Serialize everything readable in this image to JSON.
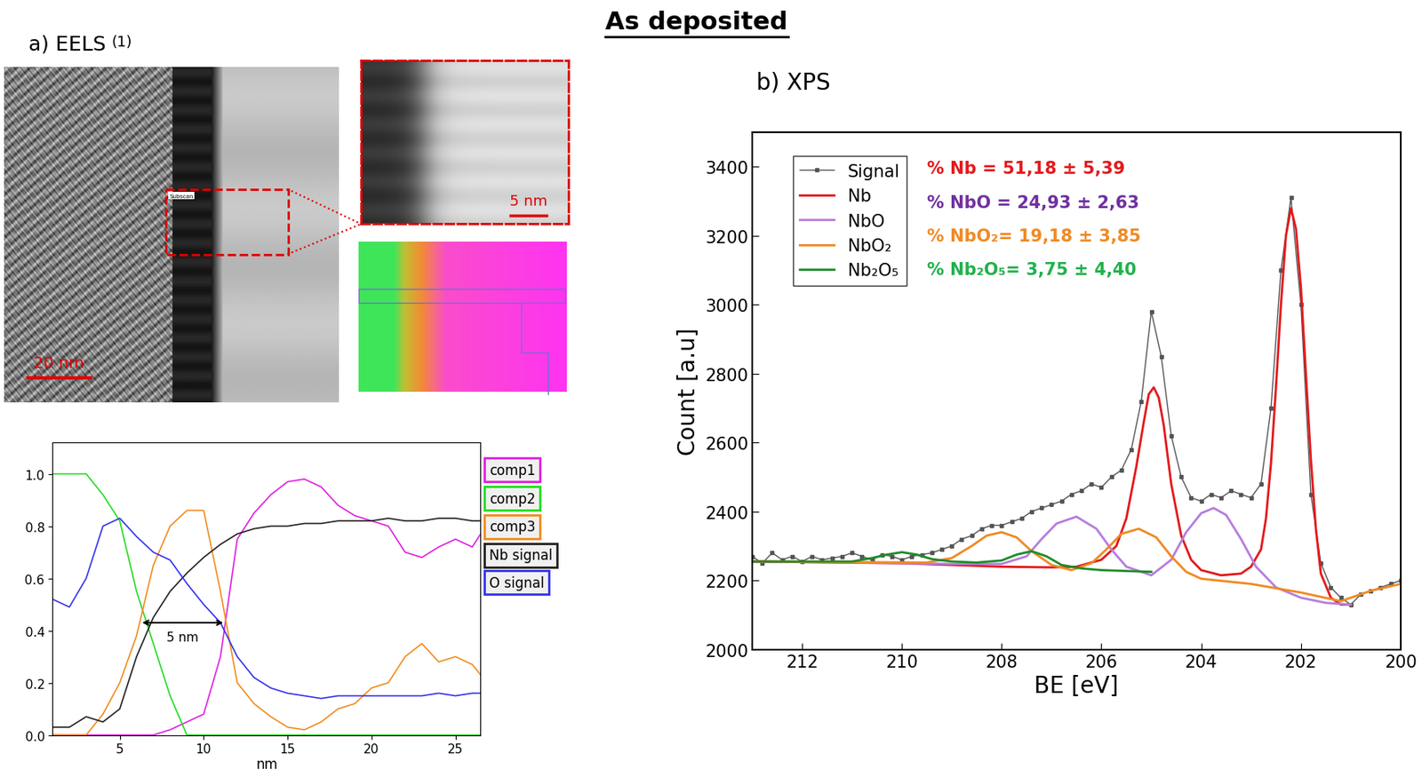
{
  "title": "As deposited",
  "panels": {
    "a": {
      "label": "a) EELS",
      "reference": "(1)",
      "image_scale_bar": "20 nm",
      "subscan_label": "Subscan",
      "zoom_scale_bar": "5 nm"
    },
    "b": {
      "label": "b) XPS"
    }
  },
  "chart_data": [
    {
      "type": "line",
      "xlabel": "nm",
      "x": [
        1,
        2,
        3,
        4,
        5,
        6,
        7,
        8,
        9,
        10,
        11,
        12,
        13,
        14,
        15,
        16,
        17,
        18,
        19,
        20,
        21,
        22,
        23,
        24,
        25,
        26,
        26.5
      ],
      "xlim": [
        1,
        26.5
      ],
      "xticks": [
        5,
        10,
        15,
        20,
        25
      ],
      "ylim": [
        0,
        1.12
      ],
      "yticks": [
        {
          "value": 0,
          "label": "0.0"
        },
        0.2,
        0.4,
        0.6,
        0.8,
        {
          "value": 1,
          "label": "1.0"
        }
      ],
      "legend": "right",
      "series": [
        {
          "name": "comp1",
          "color": "#e020e0",
          "values": [
            0,
            0,
            0,
            0,
            0,
            0,
            0,
            0.02,
            0.05,
            0.08,
            0.3,
            0.75,
            0.85,
            0.92,
            0.97,
            0.98,
            0.95,
            0.88,
            0.84,
            0.82,
            0.8,
            0.7,
            0.68,
            0.72,
            0.75,
            0.72,
            0.77
          ]
        },
        {
          "name": "comp2",
          "color": "#22dd22",
          "values": [
            1,
            1,
            1,
            0.92,
            0.82,
            0.55,
            0.35,
            0.15,
            0,
            0,
            0,
            0,
            0,
            0,
            0,
            0,
            0,
            0,
            0,
            0,
            0,
            0,
            0,
            0,
            0,
            0,
            0
          ]
        },
        {
          "name": "comp3",
          "color": "#f28c1e",
          "values": [
            0,
            0,
            0,
            0.08,
            0.2,
            0.38,
            0.65,
            0.8,
            0.86,
            0.86,
            0.55,
            0.2,
            0.12,
            0.07,
            0.03,
            0.02,
            0.05,
            0.1,
            0.12,
            0.18,
            0.2,
            0.3,
            0.35,
            0.28,
            0.3,
            0.27,
            0.23
          ]
        },
        {
          "name": "Nb signal",
          "color": "#222222",
          "values": [
            0.03,
            0.03,
            0.07,
            0.05,
            0.1,
            0.3,
            0.45,
            0.55,
            0.62,
            0.68,
            0.73,
            0.77,
            0.79,
            0.8,
            0.8,
            0.81,
            0.81,
            0.82,
            0.82,
            0.82,
            0.83,
            0.82,
            0.82,
            0.83,
            0.83,
            0.82,
            0.82
          ]
        },
        {
          "name": "O signal",
          "color": "#3333ee",
          "values": [
            0.52,
            0.49,
            0.6,
            0.8,
            0.83,
            0.76,
            0.7,
            0.67,
            0.58,
            0.5,
            0.43,
            0.3,
            0.22,
            0.18,
            0.16,
            0.15,
            0.14,
            0.15,
            0.15,
            0.15,
            0.15,
            0.15,
            0.15,
            0.16,
            0.15,
            0.16,
            0.16
          ]
        }
      ],
      "annotations": [
        {
          "text": "5 nm",
          "x_from": 6.2,
          "x_to": 11.3,
          "y": 0.43
        }
      ]
    },
    {
      "type": "line",
      "xlabel": "BE [eV]",
      "ylabel": "Count [a.u]",
      "xlim": [
        213,
        200
      ],
      "xticks": [
        212,
        210,
        208,
        206,
        204,
        202,
        200
      ],
      "ylim": [
        2000,
        3500
      ],
      "yticks": [
        2000,
        2200,
        2400,
        2600,
        2800,
        3000,
        3200,
        3400
      ],
      "legend": "upper left",
      "series": [
        {
          "name": "Signal",
          "color": "#555555",
          "marker": "square",
          "line_style": "solid",
          "x": [
            213,
            212.8,
            212.6,
            212.4,
            212.2,
            212,
            211.8,
            211.6,
            211.4,
            211.2,
            211,
            210.8,
            210.6,
            210.4,
            210.2,
            210,
            209.8,
            209.6,
            209.4,
            209.2,
            209,
            208.8,
            208.6,
            208.4,
            208.2,
            208,
            207.8,
            207.6,
            207.4,
            207.2,
            207,
            206.8,
            206.6,
            206.4,
            206.2,
            206,
            205.8,
            205.6,
            205.4,
            205.2,
            205,
            204.8,
            204.6,
            204.4,
            204.2,
            204,
            203.8,
            203.6,
            203.4,
            203.2,
            203,
            202.8,
            202.6,
            202.4,
            202.2,
            202,
            201.8,
            201.6,
            201.4,
            201.2,
            201,
            200.8,
            200.6,
            200.4,
            200.2,
            200
          ],
          "values": [
            2270,
            2250,
            2280,
            2260,
            2270,
            2255,
            2270,
            2260,
            2265,
            2270,
            2280,
            2270,
            2260,
            2275,
            2270,
            2260,
            2270,
            2275,
            2280,
            2290,
            2300,
            2320,
            2330,
            2350,
            2360,
            2360,
            2370,
            2380,
            2400,
            2410,
            2420,
            2430,
            2450,
            2460,
            2480,
            2470,
            2500,
            2520,
            2580,
            2720,
            2980,
            2850,
            2620,
            2500,
            2440,
            2430,
            2450,
            2440,
            2460,
            2450,
            2440,
            2480,
            2700,
            3100,
            3310,
            3000,
            2450,
            2250,
            2180,
            2150,
            2130,
            2160,
            2170,
            2180,
            2190,
            2200
          ]
        },
        {
          "name": "Nb",
          "color": "#e31a1c",
          "marker": "none",
          "line_style": "solid",
          "x": [
            213,
            210,
            208,
            207,
            206.5,
            206,
            205.7,
            205.5,
            205.3,
            205.15,
            205.05,
            204.95,
            204.85,
            204.75,
            204.6,
            204.4,
            204.2,
            204,
            203.6,
            203.2,
            203,
            202.8,
            202.7,
            202.6,
            202.5,
            202.4,
            202.3,
            202.2,
            202.1,
            202,
            201.9,
            201.8,
            201.7,
            201.6,
            201.4,
            201.2,
            201
          ],
          "values": [
            2255,
            2250,
            2240,
            2238,
            2240,
            2260,
            2300,
            2380,
            2530,
            2660,
            2740,
            2760,
            2730,
            2650,
            2480,
            2330,
            2260,
            2230,
            2215,
            2220,
            2240,
            2290,
            2380,
            2540,
            2760,
            3000,
            3200,
            3280,
            3220,
            3050,
            2800,
            2550,
            2350,
            2220,
            2150,
            2130,
            2130
          ]
        },
        {
          "name": "NbO",
          "color": "#b57edc",
          "marker": "none",
          "line_style": "solid",
          "x": [
            213,
            209,
            208,
            207.5,
            207.2,
            206.9,
            206.5,
            206.1,
            205.8,
            205.5,
            205,
            204.6,
            204.3,
            204,
            203.75,
            203.5,
            203.2,
            202.9,
            202.5,
            202,
            201.5,
            201
          ],
          "values": [
            2255,
            2248,
            2248,
            2270,
            2320,
            2365,
            2385,
            2350,
            2290,
            2240,
            2215,
            2260,
            2340,
            2395,
            2410,
            2390,
            2320,
            2240,
            2180,
            2150,
            2135,
            2130
          ]
        },
        {
          "name": "NbO₂",
          "color": "#f08a24",
          "marker": "none",
          "line_style": "solid",
          "x": [
            213,
            209.5,
            209,
            208.6,
            208.3,
            208,
            207.7,
            207.4,
            207,
            206.6,
            206.2,
            205.9,
            205.6,
            205.25,
            204.9,
            204.6,
            204.3,
            204,
            203,
            202,
            201.2,
            200.6,
            200
          ],
          "values": [
            2255,
            2252,
            2265,
            2300,
            2330,
            2340,
            2325,
            2285,
            2245,
            2230,
            2250,
            2290,
            2335,
            2350,
            2325,
            2270,
            2225,
            2205,
            2190,
            2165,
            2140,
            2170,
            2190
          ]
        },
        {
          "name": "Nb₂O₅",
          "color": "#1e8c2a",
          "marker": "none",
          "line_style": "solid",
          "x": [
            213,
            211,
            210.6,
            210.3,
            210,
            209.7,
            209.4,
            209,
            208.5,
            208,
            207.7,
            207.4,
            207.1,
            206.8,
            206.4,
            206,
            205
          ],
          "values": [
            2255,
            2255,
            2265,
            2275,
            2282,
            2275,
            2262,
            2255,
            2252,
            2258,
            2275,
            2285,
            2270,
            2245,
            2235,
            2230,
            2225
          ]
        }
      ],
      "annotations": [
        {
          "text": "% Nb = 51,18 ± 5,39",
          "color": "#e31a1c"
        },
        {
          "text": "% NbO = 24,93 ± 2,63",
          "color": "#7030a0"
        },
        {
          "text": "% NbO₂= 19,18 ± 3,85",
          "color": "#f08a24"
        },
        {
          "text": "% Nb₂O₅= 3,75 ± 4,40",
          "color": "#22b14c"
        }
      ]
    }
  ]
}
